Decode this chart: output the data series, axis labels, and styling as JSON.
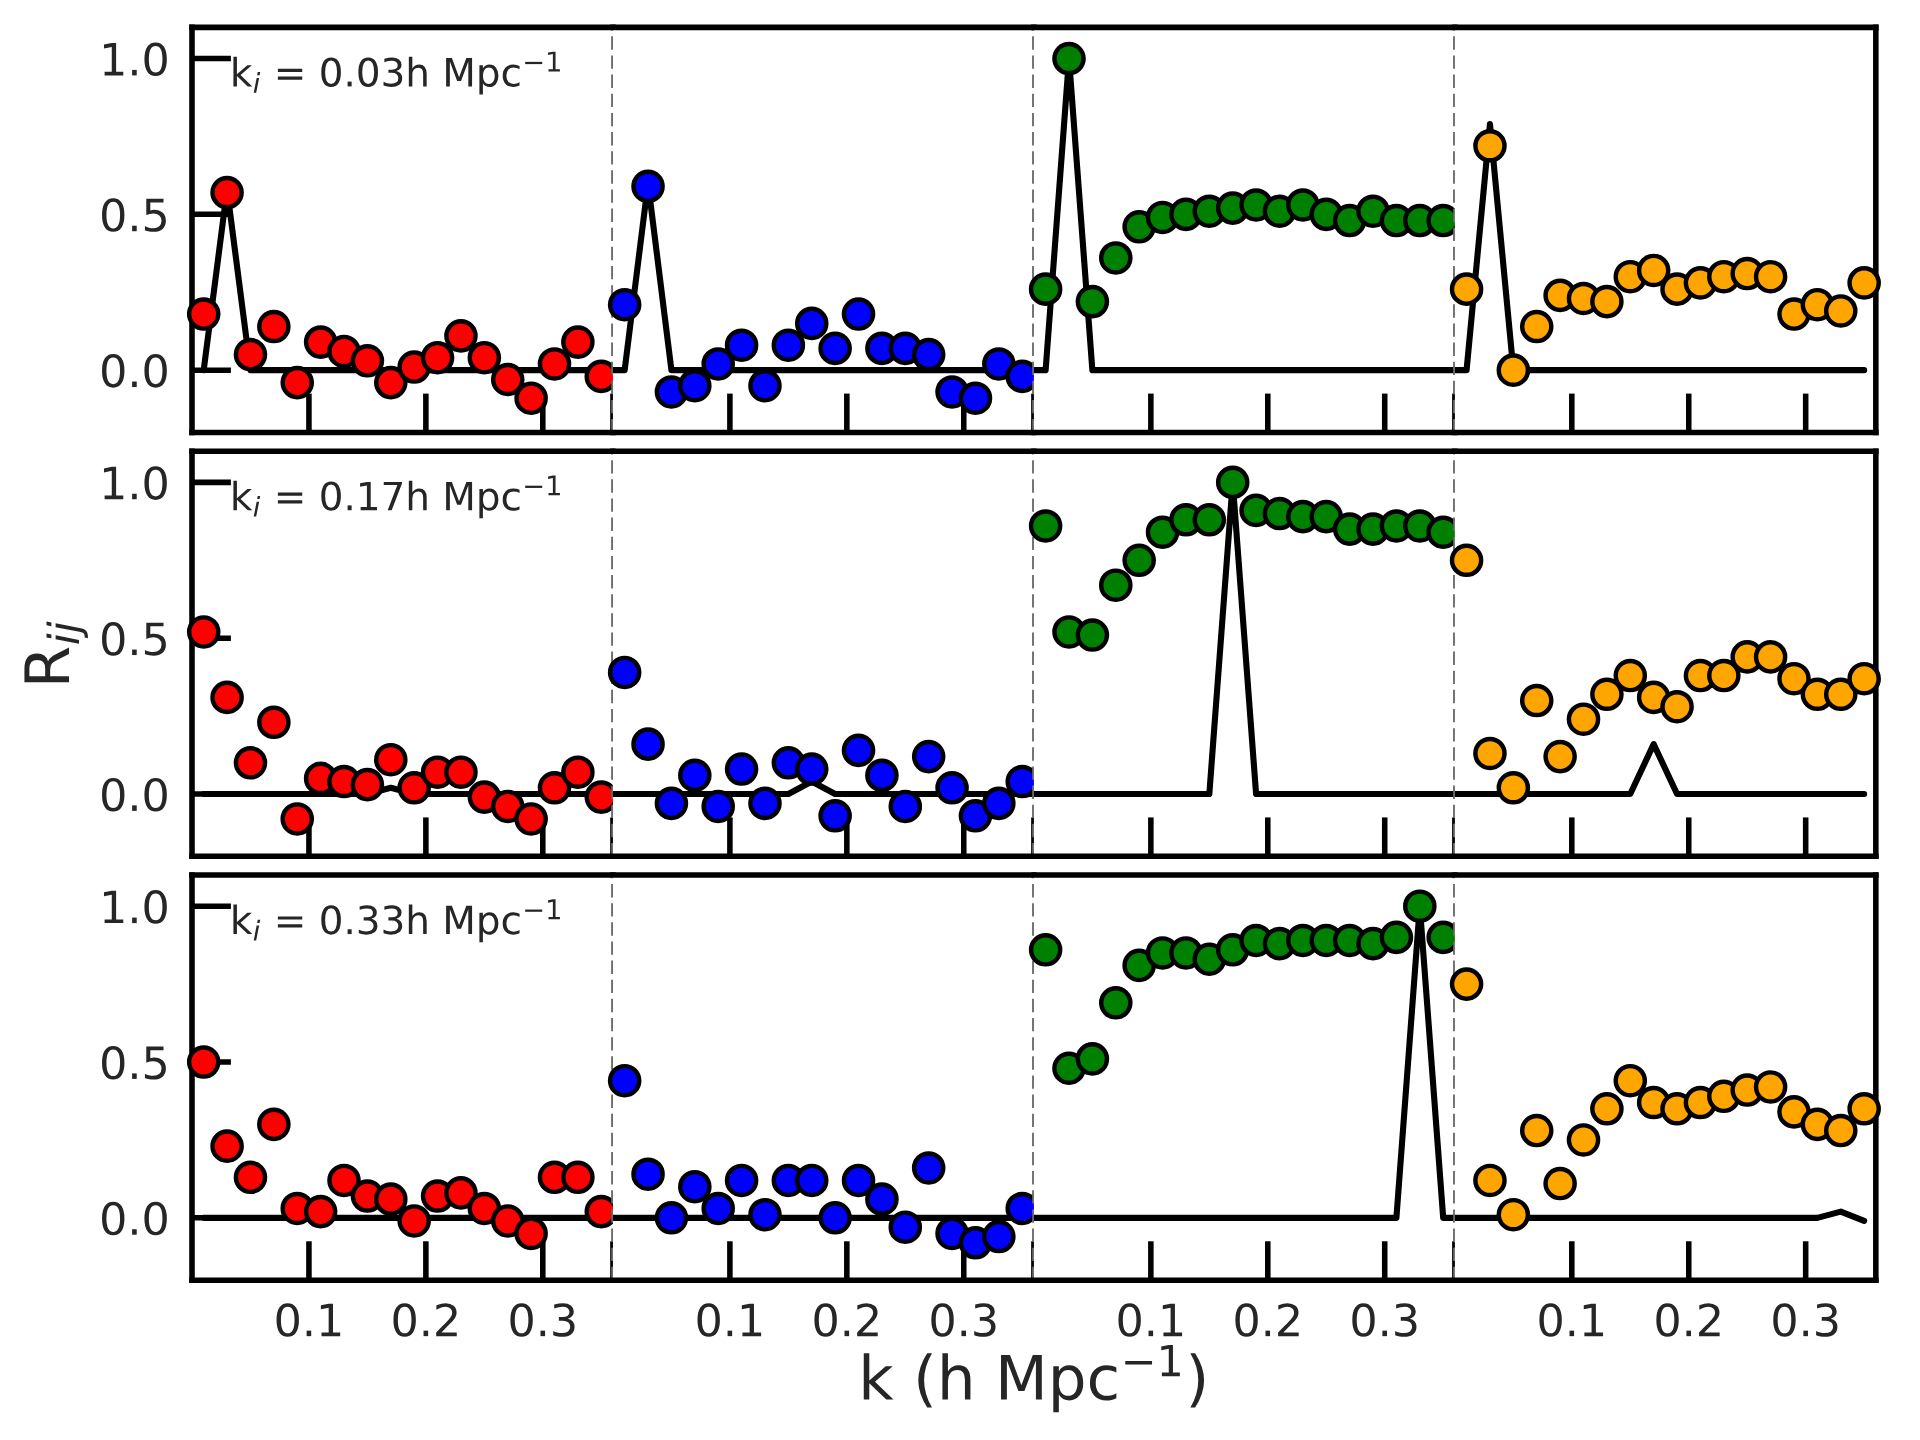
{
  "chart_data": [
    {
      "type": "scatter",
      "marker": "circle",
      "tick_labels": "y",
      "annotations": [
        "k$_{i}$ = 0.03h Mpc$^{−1}$"
      ],
      "xlim": [
        0,
        0.36
      ],
      "ylim": [
        -0.2,
        1.1
      ],
      "xticks": [
        {
          "value": 0.1,
          "label": null
        },
        {
          "value": 0.2,
          "label": null
        },
        {
          "value": 0.3,
          "label": null
        },
        {
          "value": 0.36,
          "label": null
        }
      ],
      "yticks": [
        {
          "value": 0,
          "label": "0.0"
        },
        {
          "value": 0.5,
          "label": "0.5"
        },
        {
          "value": 1.0,
          "label": "1.0"
        }
      ],
      "ref_lines": [
        {
          "axis": "x",
          "value": 0.36,
          "color": "#666666",
          "line_style": "dashed"
        }
      ],
      "series": [
        {
          "type": "line",
          "color": "#000000",
          "marker": "none",
          "x": [
            0.01,
            0.03,
            0.05,
            0.36
          ],
          "values": [
            0,
            0.58,
            0,
            0
          ]
        },
        {
          "color": "#ff0000",
          "x": [
            0.01,
            0.03,
            0.05,
            0.07,
            0.09,
            0.11,
            0.13,
            0.15,
            0.17,
            0.19,
            0.21,
            0.23,
            0.25,
            0.27,
            0.29,
            0.31,
            0.33,
            0.35
          ],
          "values": [
            0.18,
            0.57,
            0.05,
            0.14,
            -0.04,
            0.09,
            0.06,
            0.03,
            -0.04,
            0.01,
            0.04,
            0.11,
            0.04,
            -0.03,
            -0.09,
            0.02,
            0.09,
            -0.02
          ]
        }
      ]
    },
    {
      "type": "scatter",
      "marker": "circle",
      "tick_labels": false,
      "xlim": [
        0,
        0.36
      ],
      "ylim": [
        -0.2,
        1.1
      ],
      "xticks": [
        {
          "value": 0.1,
          "label": null
        },
        {
          "value": 0.2,
          "label": null
        },
        {
          "value": 0.3,
          "label": null
        },
        {
          "value": 0.36,
          "label": null
        }
      ],
      "ref_lines": [
        {
          "axis": "x",
          "value": 0.36,
          "color": "#666666",
          "line_style": "dashed"
        }
      ],
      "series": [
        {
          "type": "line",
          "color": "#000000",
          "marker": "none",
          "x": [
            0,
            0.01,
            0.03,
            0.05,
            0.36
          ],
          "values": [
            0,
            0,
            0.6,
            0,
            0
          ]
        },
        {
          "color": "#0000ff",
          "x": [
            0.01,
            0.03,
            0.05,
            0.07,
            0.09,
            0.11,
            0.13,
            0.15,
            0.17,
            0.19,
            0.21,
            0.23,
            0.25,
            0.27,
            0.29,
            0.31,
            0.33,
            0.35
          ],
          "values": [
            0.21,
            0.59,
            -0.07,
            -0.05,
            0.02,
            0.08,
            -0.05,
            0.08,
            0.15,
            0.07,
            0.18,
            0.07,
            0.07,
            0.05,
            -0.07,
            -0.09,
            0.02,
            -0.02
          ]
        }
      ]
    },
    {
      "type": "scatter",
      "marker": "circle",
      "tick_labels": false,
      "xlim": [
        0,
        0.36
      ],
      "ylim": [
        -0.2,
        1.1
      ],
      "xticks": [
        {
          "value": 0.1,
          "label": null
        },
        {
          "value": 0.2,
          "label": null
        },
        {
          "value": 0.3,
          "label": null
        },
        {
          "value": 0.36,
          "label": null
        }
      ],
      "ref_lines": [
        {
          "axis": "x",
          "value": 0.36,
          "color": "#666666",
          "line_style": "dashed"
        }
      ],
      "series": [
        {
          "type": "line",
          "color": "#000000",
          "marker": "none",
          "x": [
            0,
            0.01,
            0.03,
            0.05,
            0.36
          ],
          "values": [
            0,
            0,
            1.0,
            0,
            0
          ]
        },
        {
          "color": "#008000",
          "x": [
            0.01,
            0.03,
            0.05,
            0.07,
            0.09,
            0.11,
            0.13,
            0.15,
            0.17,
            0.19,
            0.21,
            0.23,
            0.25,
            0.27,
            0.29,
            0.31,
            0.33,
            0.35
          ],
          "values": [
            0.26,
            1.0,
            0.22,
            0.36,
            0.46,
            0.49,
            0.5,
            0.51,
            0.52,
            0.53,
            0.51,
            0.53,
            0.5,
            0.48,
            0.51,
            0.48,
            0.48,
            0.48
          ]
        }
      ]
    },
    {
      "type": "scatter",
      "marker": "circle",
      "tick_labels": false,
      "xlim": [
        0,
        0.36
      ],
      "ylim": [
        -0.2,
        1.1
      ],
      "xticks": [
        {
          "value": 0.1,
          "label": null
        },
        {
          "value": 0.2,
          "label": null
        },
        {
          "value": 0.3,
          "label": null
        }
      ],
      "series": [
        {
          "type": "line",
          "color": "#000000",
          "marker": "none",
          "x": [
            0,
            0.01,
            0.03,
            0.05,
            0.35
          ],
          "values": [
            0,
            0,
            0.79,
            0,
            0
          ]
        },
        {
          "color": "#ffa500",
          "x": [
            0.01,
            0.03,
            0.05,
            0.07,
            0.09,
            0.11,
            0.13,
            0.15,
            0.17,
            0.19,
            0.21,
            0.23,
            0.25,
            0.27,
            0.29,
            0.31,
            0.33,
            0.35
          ],
          "values": [
            0.26,
            0.72,
            0.0,
            0.14,
            0.24,
            0.23,
            0.22,
            0.3,
            0.32,
            0.26,
            0.28,
            0.3,
            0.31,
            0.3,
            0.18,
            0.21,
            0.19,
            0.28
          ]
        }
      ]
    },
    {
      "type": "scatter",
      "marker": "circle",
      "tick_labels": "y",
      "ylabel": "R$_{ij}$",
      "annotations": [
        "k$_{i}$ = 0.17h Mpc$^{−1}$"
      ],
      "xlim": [
        0,
        0.36
      ],
      "ylim": [
        -0.2,
        1.1
      ],
      "xticks": [
        {
          "value": 0.1,
          "label": null
        },
        {
          "value": 0.2,
          "label": null
        },
        {
          "value": 0.3,
          "label": null
        },
        {
          "value": 0.36,
          "label": null
        }
      ],
      "yticks": [
        {
          "value": 0,
          "label": "0.0"
        },
        {
          "value": 0.5,
          "label": "0.5"
        },
        {
          "value": 1.0,
          "label": "1.0"
        }
      ],
      "ref_lines": [
        {
          "axis": "x",
          "value": 0.36,
          "color": "#666666",
          "line_style": "dashed"
        }
      ],
      "series": [
        {
          "type": "line",
          "color": "#000000",
          "marker": "none",
          "x": [
            0.01,
            0.15,
            0.17,
            0.19,
            0.36
          ],
          "values": [
            0,
            0,
            0.02,
            0,
            0
          ]
        },
        {
          "color": "#ff0000",
          "x": [
            0.01,
            0.03,
            0.05,
            0.07,
            0.09,
            0.11,
            0.13,
            0.15,
            0.17,
            0.19,
            0.21,
            0.23,
            0.25,
            0.27,
            0.29,
            0.31,
            0.33,
            0.35
          ],
          "values": [
            0.52,
            0.31,
            0.1,
            0.23,
            -0.08,
            0.05,
            0.04,
            0.03,
            0.11,
            0.02,
            0.07,
            0.07,
            -0.01,
            -0.04,
            -0.08,
            0.02,
            0.07,
            -0.01
          ]
        }
      ]
    },
    {
      "type": "scatter",
      "marker": "circle",
      "tick_labels": false,
      "xlim": [
        0,
        0.36
      ],
      "ylim": [
        -0.2,
        1.1
      ],
      "xticks": [
        {
          "value": 0.1,
          "label": null
        },
        {
          "value": 0.2,
          "label": null
        },
        {
          "value": 0.3,
          "label": null
        },
        {
          "value": 0.36,
          "label": null
        }
      ],
      "ref_lines": [
        {
          "axis": "x",
          "value": 0.36,
          "color": "#666666",
          "line_style": "dashed"
        }
      ],
      "series": [
        {
          "type": "line",
          "color": "#000000",
          "marker": "none",
          "x": [
            0,
            0.15,
            0.17,
            0.19,
            0.36
          ],
          "values": [
            0,
            0,
            0.04,
            0,
            0
          ]
        },
        {
          "color": "#0000ff",
          "x": [
            0.01,
            0.03,
            0.05,
            0.07,
            0.09,
            0.11,
            0.13,
            0.15,
            0.17,
            0.19,
            0.21,
            0.23,
            0.25,
            0.27,
            0.29,
            0.31,
            0.33,
            0.35
          ],
          "values": [
            0.39,
            0.16,
            -0.03,
            0.06,
            -0.04,
            0.08,
            -0.03,
            0.1,
            0.08,
            -0.07,
            0.14,
            0.06,
            -0.04,
            0.12,
            0.02,
            -0.07,
            -0.03,
            0.04
          ]
        }
      ]
    },
    {
      "type": "scatter",
      "marker": "circle",
      "tick_labels": false,
      "xlim": [
        0,
        0.36
      ],
      "ylim": [
        -0.2,
        1.1
      ],
      "xticks": [
        {
          "value": 0.1,
          "label": null
        },
        {
          "value": 0.2,
          "label": null
        },
        {
          "value": 0.3,
          "label": null
        },
        {
          "value": 0.36,
          "label": null
        }
      ],
      "ref_lines": [
        {
          "axis": "x",
          "value": 0.36,
          "color": "#666666",
          "line_style": "dashed"
        }
      ],
      "series": [
        {
          "type": "line",
          "color": "#000000",
          "marker": "none",
          "x": [
            0,
            0.15,
            0.17,
            0.19,
            0.36
          ],
          "values": [
            0,
            0,
            1.0,
            0,
            0
          ]
        },
        {
          "color": "#008000",
          "x": [
            0.01,
            0.03,
            0.05,
            0.07,
            0.09,
            0.11,
            0.13,
            0.15,
            0.17,
            0.19,
            0.21,
            0.23,
            0.25,
            0.27,
            0.29,
            0.31,
            0.33,
            0.35
          ],
          "values": [
            0.86,
            0.52,
            0.51,
            0.67,
            0.75,
            0.84,
            0.88,
            0.88,
            1.0,
            0.91,
            0.9,
            0.89,
            0.89,
            0.85,
            0.85,
            0.86,
            0.86,
            0.84
          ]
        }
      ]
    },
    {
      "type": "scatter",
      "marker": "circle",
      "tick_labels": false,
      "xlim": [
        0,
        0.36
      ],
      "ylim": [
        -0.2,
        1.1
      ],
      "xticks": [
        {
          "value": 0.1,
          "label": null
        },
        {
          "value": 0.2,
          "label": null
        },
        {
          "value": 0.3,
          "label": null
        }
      ],
      "series": [
        {
          "type": "line",
          "color": "#000000",
          "marker": "none",
          "x": [
            0,
            0.15,
            0.17,
            0.19,
            0.35
          ],
          "values": [
            0,
            0,
            0.16,
            0,
            0
          ]
        },
        {
          "color": "#ffa500",
          "x": [
            0.01,
            0.03,
            0.05,
            0.07,
            0.09,
            0.11,
            0.13,
            0.15,
            0.17,
            0.19,
            0.21,
            0.23,
            0.25,
            0.27,
            0.29,
            0.31,
            0.33,
            0.35
          ],
          "values": [
            0.75,
            0.13,
            0.02,
            0.3,
            0.12,
            0.24,
            0.32,
            0.38,
            0.31,
            0.28,
            0.38,
            0.38,
            0.44,
            0.44,
            0.37,
            0.32,
            0.32,
            0.37
          ]
        }
      ]
    },
    {
      "type": "scatter",
      "marker": "circle",
      "annotations": [
        "k$_{i}$ = 0.33h Mpc$^{−1}$"
      ],
      "xlim": [
        0,
        0.36
      ],
      "ylim": [
        -0.2,
        1.1
      ],
      "xticks": [
        0.1,
        0.2,
        0.3,
        {
          "value": 0.36,
          "label": null
        }
      ],
      "yticks": [
        {
          "value": 0,
          "label": "0.0"
        },
        {
          "value": 0.5,
          "label": "0.5"
        },
        {
          "value": 1.0,
          "label": "1.0"
        }
      ],
      "ref_lines": [
        {
          "axis": "x",
          "value": 0.36,
          "color": "#666666",
          "line_style": "dashed"
        }
      ],
      "series": [
        {
          "type": "line",
          "color": "#000000",
          "marker": "none",
          "x": [
            0.01,
            0.36
          ],
          "values": [
            0,
            0
          ]
        },
        {
          "color": "#ff0000",
          "x": [
            0.01,
            0.03,
            0.05,
            0.07,
            0.09,
            0.11,
            0.13,
            0.15,
            0.17,
            0.19,
            0.21,
            0.23,
            0.25,
            0.27,
            0.29,
            0.31,
            0.33,
            0.35
          ],
          "values": [
            0.5,
            0.23,
            0.13,
            0.3,
            0.03,
            0.02,
            0.12,
            0.07,
            0.06,
            -0.01,
            0.07,
            0.08,
            0.03,
            -0.01,
            -0.05,
            0.13,
            0.13,
            0.02
          ]
        }
      ]
    },
    {
      "type": "scatter",
      "marker": "circle",
      "tick_labels": "x",
      "xlabel": "k (h Mpc$^{−1}$)",
      "xlim": [
        0,
        0.36
      ],
      "ylim": [
        -0.2,
        1.1
      ],
      "xticks": [
        0.1,
        0.2,
        0.3,
        {
          "value": 0.36,
          "label": null
        }
      ],
      "ref_lines": [
        {
          "axis": "x",
          "value": 0.36,
          "color": "#666666",
          "line_style": "dashed"
        }
      ],
      "series": [
        {
          "type": "line",
          "color": "#000000",
          "marker": "none",
          "x": [
            0,
            0.36
          ],
          "values": [
            0,
            0
          ]
        },
        {
          "color": "#0000ff",
          "x": [
            0.01,
            0.03,
            0.05,
            0.07,
            0.09,
            0.11,
            0.13,
            0.15,
            0.17,
            0.19,
            0.21,
            0.23,
            0.25,
            0.27,
            0.29,
            0.31,
            0.33,
            0.35
          ],
          "values": [
            0.44,
            0.14,
            0.0,
            0.1,
            0.03,
            0.12,
            0.01,
            0.12,
            0.12,
            0.0,
            0.12,
            0.06,
            -0.03,
            0.16,
            -0.05,
            -0.08,
            -0.06,
            0.03
          ]
        }
      ]
    },
    {
      "type": "scatter",
      "marker": "circle",
      "tick_labels": "x",
      "xlim": [
        0,
        0.36
      ],
      "ylim": [
        -0.2,
        1.1
      ],
      "xticks": [
        0.1,
        0.2,
        0.3,
        {
          "value": 0.36,
          "label": null
        }
      ],
      "ref_lines": [
        {
          "axis": "x",
          "value": 0.36,
          "color": "#666666",
          "line_style": "dashed"
        }
      ],
      "series": [
        {
          "type": "line",
          "color": "#000000",
          "marker": "none",
          "x": [
            0,
            0.31,
            0.33,
            0.35,
            0.36
          ],
          "values": [
            0,
            0,
            1.0,
            0,
            0
          ]
        },
        {
          "color": "#008000",
          "x": [
            0.01,
            0.03,
            0.05,
            0.07,
            0.09,
            0.11,
            0.13,
            0.15,
            0.17,
            0.19,
            0.21,
            0.23,
            0.25,
            0.27,
            0.29,
            0.31,
            0.33,
            0.35
          ],
          "values": [
            0.86,
            0.48,
            0.51,
            0.69,
            0.81,
            0.85,
            0.85,
            0.83,
            0.86,
            0.89,
            0.88,
            0.89,
            0.89,
            0.89,
            0.88,
            0.9,
            1.0,
            0.9
          ]
        }
      ]
    },
    {
      "type": "scatter",
      "marker": "circle",
      "tick_labels": "x",
      "xlim": [
        0,
        0.36
      ],
      "ylim": [
        -0.2,
        1.1
      ],
      "xticks": [
        0.1,
        0.2,
        0.3
      ],
      "series": [
        {
          "type": "line",
          "color": "#000000",
          "marker": "none",
          "x": [
            0,
            0.31,
            0.33,
            0.35
          ],
          "values": [
            0,
            0,
            0.02,
            -0.01
          ]
        },
        {
          "color": "#ffa500",
          "x": [
            0.01,
            0.03,
            0.05,
            0.07,
            0.09,
            0.11,
            0.13,
            0.15,
            0.17,
            0.19,
            0.21,
            0.23,
            0.25,
            0.27,
            0.29,
            0.31,
            0.33,
            0.35
          ],
          "values": [
            0.75,
            0.12,
            0.01,
            0.28,
            0.11,
            0.25,
            0.35,
            0.44,
            0.37,
            0.35,
            0.37,
            0.39,
            0.41,
            0.42,
            0.34,
            0.3,
            0.28,
            0.35
          ]
        }
      ]
    }
  ]
}
